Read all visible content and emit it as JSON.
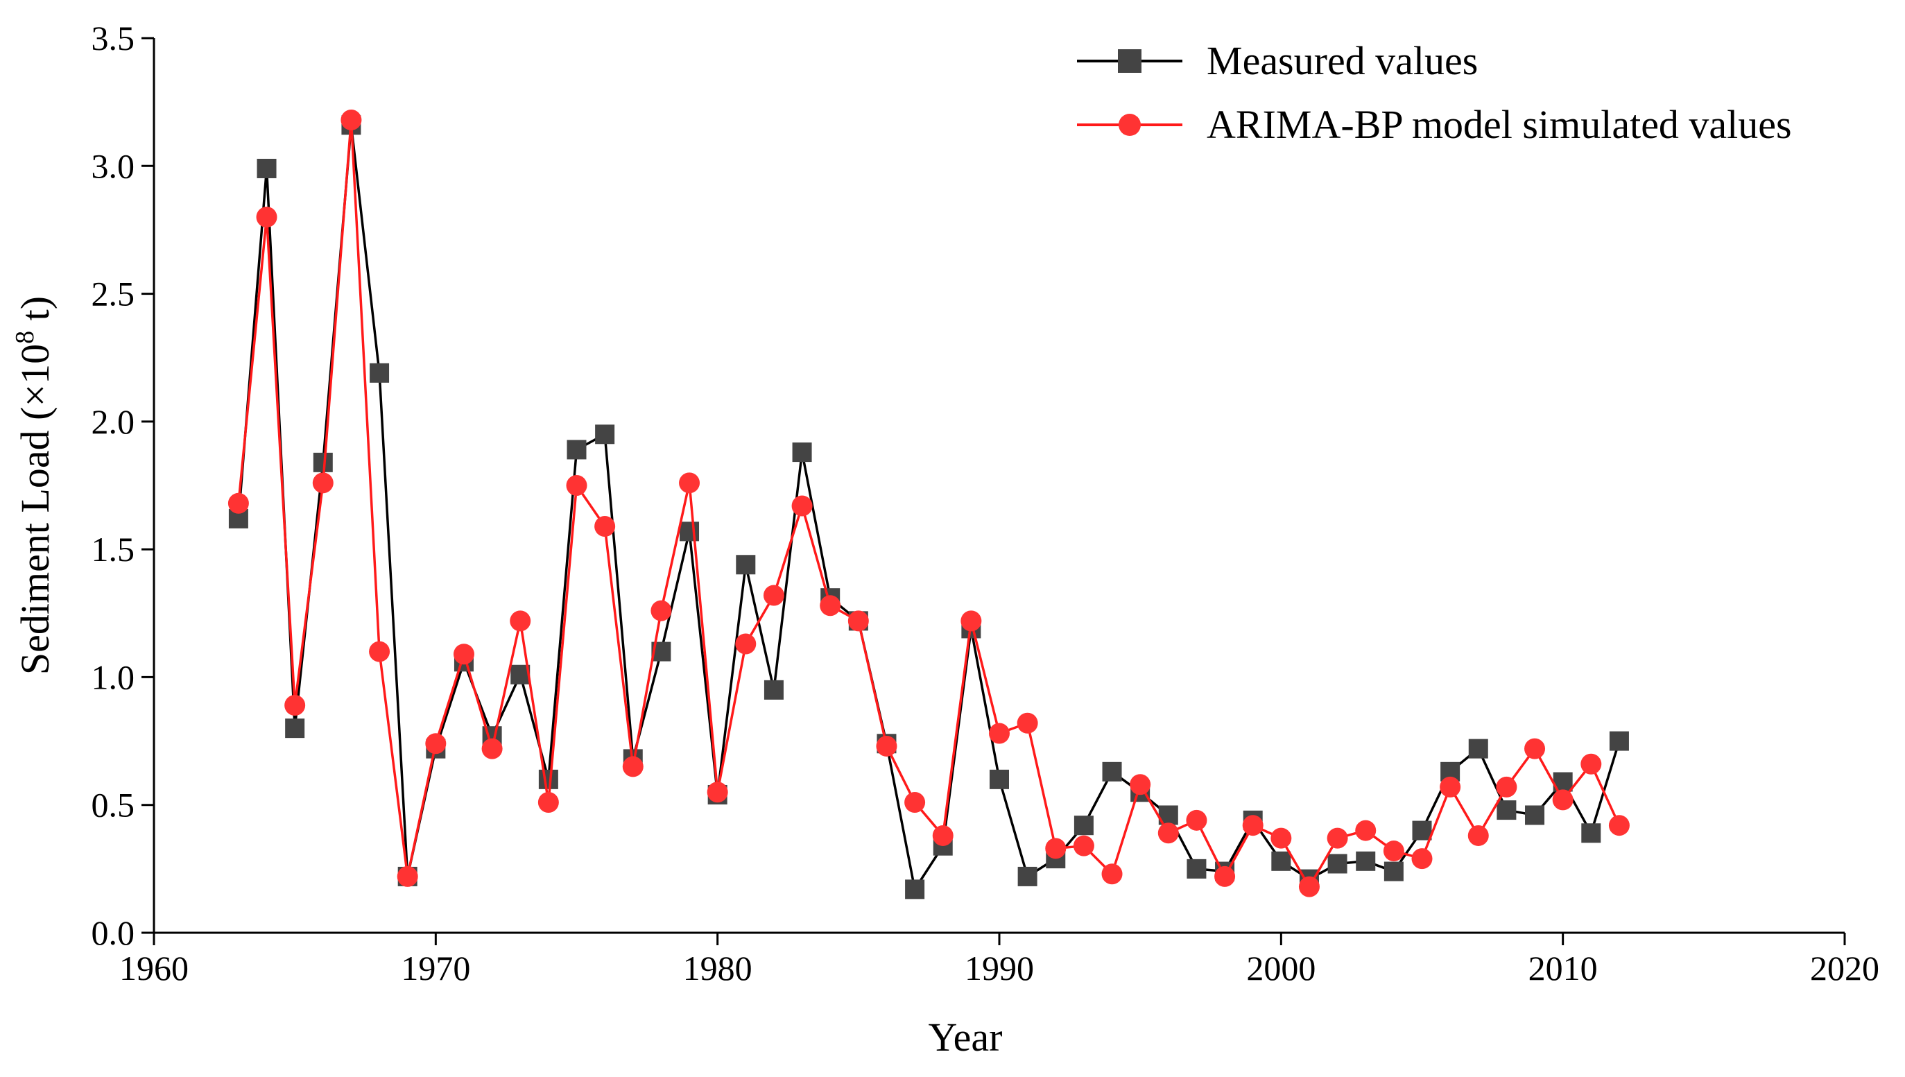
{
  "chart_data": {
    "type": "line",
    "xlabel": "Year",
    "ylabel": "Sediment Load (×10",
    "ylabel_sup": "8",
    "ylabel_suffix": " t)",
    "xlim": [
      1960,
      2020
    ],
    "ylim": [
      0.0,
      3.5
    ],
    "x_ticks": [
      "1960",
      "1970",
      "1980",
      "1990",
      "2000",
      "2010",
      "2020"
    ],
    "y_ticks": [
      "0.0",
      "0.5",
      "1.0",
      "1.5",
      "2.0",
      "2.5",
      "3.0",
      "3.5"
    ],
    "grid": false,
    "legend_position": "top-right",
    "x": [
      1963,
      1964,
      1965,
      1966,
      1967,
      1968,
      1969,
      1970,
      1971,
      1972,
      1973,
      1974,
      1975,
      1976,
      1977,
      1978,
      1979,
      1980,
      1981,
      1982,
      1983,
      1984,
      1985,
      1986,
      1987,
      1988,
      1989,
      1990,
      1991,
      1992,
      1993,
      1994,
      1995,
      1996,
      1997,
      1998,
      1999,
      2000,
      2001,
      2002,
      2003,
      2004,
      2005,
      2006,
      2007,
      2008,
      2009,
      2010,
      2011,
      2012
    ],
    "series": [
      {
        "name": "Measured values",
        "color": "#000000",
        "marker_color": "#444444",
        "marker": "square",
        "values": [
          1.62,
          2.99,
          0.8,
          1.84,
          3.16,
          2.19,
          0.22,
          0.72,
          1.06,
          0.77,
          1.01,
          0.6,
          1.89,
          1.95,
          0.68,
          1.1,
          1.57,
          0.54,
          1.44,
          0.95,
          1.88,
          1.31,
          1.22,
          0.74,
          0.17,
          0.34,
          1.19,
          0.6,
          0.22,
          0.29,
          0.42,
          0.63,
          0.55,
          0.46,
          0.25,
          0.24,
          0.44,
          0.28,
          0.21,
          0.27,
          0.28,
          0.24,
          0.4,
          0.63,
          0.72,
          0.48,
          0.46,
          0.59,
          0.39,
          0.75
        ]
      },
      {
        "name": "ARIMA-BP model simulated values",
        "color": "#ff1a1a",
        "marker_color": "#ff3333",
        "marker": "circle",
        "values": [
          1.68,
          2.8,
          0.89,
          1.76,
          3.18,
          1.1,
          0.22,
          0.74,
          1.09,
          0.72,
          1.22,
          0.51,
          1.75,
          1.59,
          0.65,
          1.26,
          1.76,
          0.55,
          1.13,
          1.32,
          1.67,
          1.28,
          1.22,
          0.73,
          0.51,
          0.38,
          1.22,
          0.78,
          0.82,
          0.33,
          0.34,
          0.23,
          0.58,
          0.39,
          0.44,
          0.22,
          0.42,
          0.37,
          0.18,
          0.37,
          0.4,
          0.32,
          0.29,
          0.57,
          0.38,
          0.57,
          0.72,
          0.52,
          0.66,
          0.42
        ]
      }
    ]
  }
}
